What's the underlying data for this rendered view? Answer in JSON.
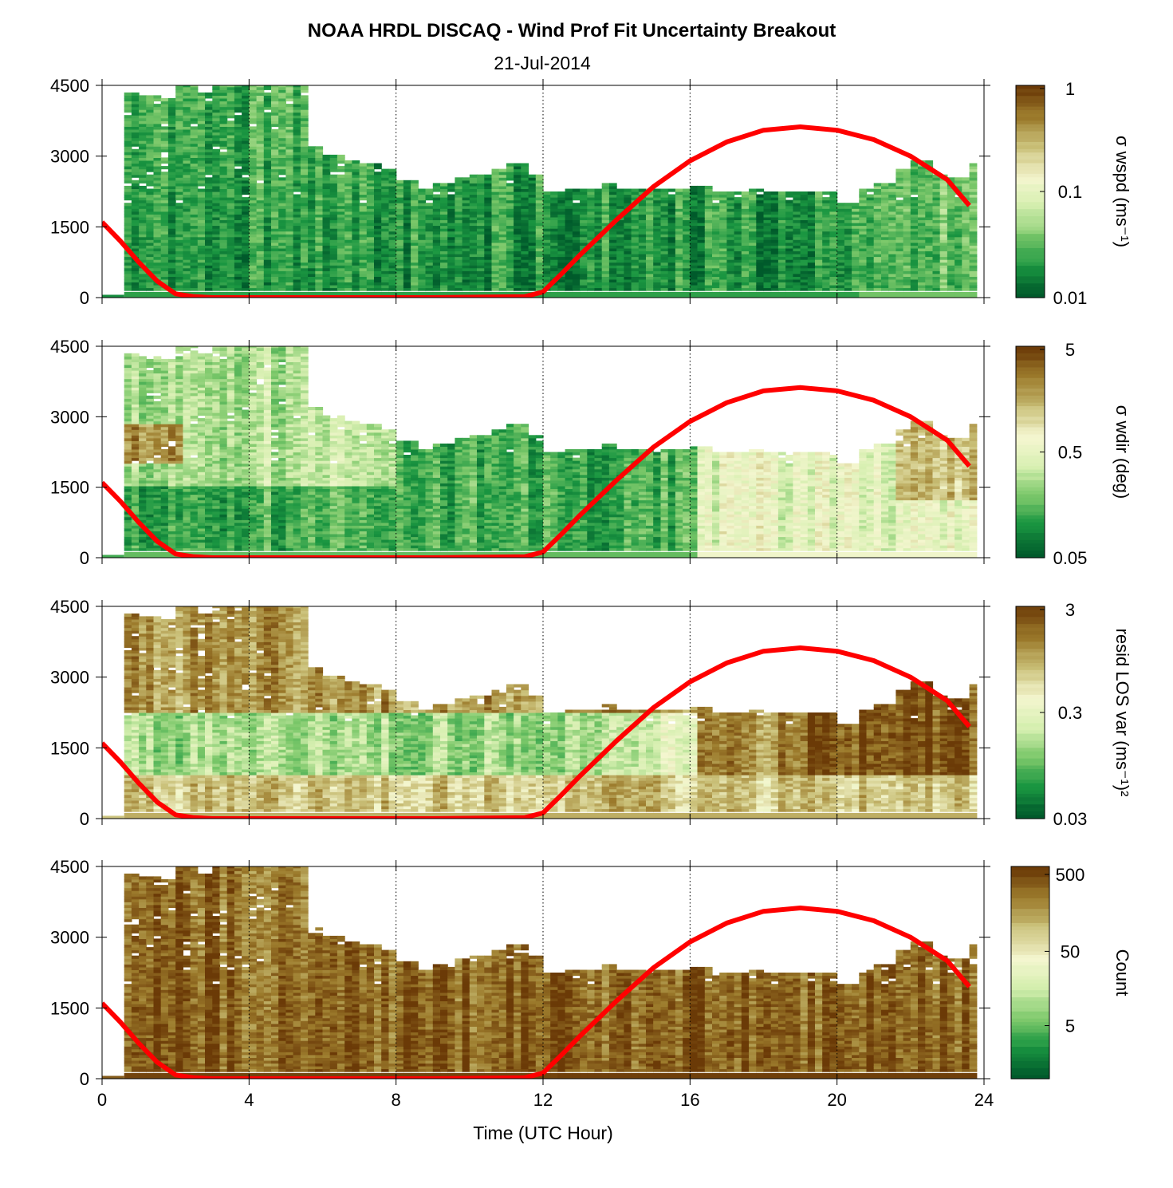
{
  "figure": {
    "title": "NOAA HRDL DISCAQ - Wind Prof Fit Uncertainty Breakout",
    "subtitle": "21-Jul-2014",
    "xlabel": "Time (UTC Hour)",
    "x_ticks": [
      "0",
      "4",
      "8",
      "12",
      "16",
      "20",
      "24"
    ],
    "y_ticks": [
      "0",
      "1500",
      "3000",
      "4500"
    ]
  },
  "colormap": {
    "low": "#006837",
    "mid": "#f7fbe0",
    "high": "#6b3a07",
    "stops": [
      "#005a2b",
      "#1a9641",
      "#7cc86a",
      "#d6efb0",
      "#f4f6cf",
      "#c9bf77",
      "#9c7b2c",
      "#6b3a07"
    ],
    "overlay_line": "#ff0000"
  },
  "chart_data": [
    {
      "type": "heatmap",
      "panel": "wspd",
      "colorbar_label": "σ wspd (ms⁻¹)",
      "colorbar_ticks": [
        "1",
        "0.1",
        "0.01"
      ],
      "color_scale": "log",
      "clim": [
        0.01,
        1
      ],
      "xlim": [
        0,
        24
      ],
      "ylim": [
        0,
        4500
      ],
      "grid": "vertical dotted at 4, 8, 12, 16, 20",
      "data_top_profile": {
        "x": [
          0.6,
          1.0,
          1.5,
          2.0,
          2.5,
          3.0,
          3.5,
          4.0,
          4.5,
          5.0,
          5.5,
          6.0,
          6.5,
          7.0,
          7.5,
          8.0,
          8.5,
          9.0,
          9.5,
          10.0,
          10.5,
          11.0,
          11.5,
          12.0,
          12.5,
          13.0,
          13.5,
          14.0,
          14.5,
          15.0,
          15.5,
          16.0,
          16.5,
          17.0,
          17.5,
          18.0,
          18.5,
          19.0,
          19.5,
          20.0,
          20.5,
          21.0,
          21.5,
          22.0,
          22.5,
          23.0,
          23.5
        ],
        "y": [
          4300,
          4250,
          4200,
          4500,
          4300,
          4500,
          4500,
          4500,
          4500,
          4500,
          3200,
          3000,
          2900,
          2800,
          2700,
          2450,
          2300,
          2400,
          2500,
          2600,
          2700,
          2800,
          2600,
          2200,
          2300,
          2300,
          2400,
          2300,
          2300,
          2300,
          2300,
          2350,
          2200,
          2200,
          2300,
          2200,
          2200,
          2200,
          2200,
          2000,
          2300,
          2400,
          2700,
          2900,
          2600,
          2500,
          2800
        ]
      },
      "overlay_curve": {
        "x": [
          0,
          0.5,
          1.0,
          1.5,
          2.0,
          2.5,
          3,
          6,
          9,
          11.5,
          12.0,
          12.5,
          13,
          14,
          15,
          16,
          17,
          18,
          19,
          20,
          21,
          22,
          23,
          23.6
        ],
        "y": [
          1600,
          1200,
          750,
          350,
          80,
          20,
          0,
          0,
          0,
          20,
          120,
          500,
          900,
          1650,
          2350,
          2900,
          3300,
          3550,
          3620,
          3550,
          3350,
          3000,
          2500,
          1950
        ]
      }
    },
    {
      "type": "heatmap",
      "panel": "wdir",
      "colorbar_label": "σ wdir (deg)",
      "colorbar_ticks": [
        "5",
        "0.5",
        "0.05"
      ],
      "color_scale": "log",
      "clim": [
        0.05,
        5
      ],
      "xlim": [
        0,
        24
      ],
      "ylim": [
        0,
        4500
      ],
      "grid": "vertical dotted at 4, 8, 12, 16, 20",
      "overlay_curve": {
        "x": [
          0,
          0.5,
          1.0,
          1.5,
          2.0,
          2.5,
          3,
          6,
          9,
          11.5,
          12.0,
          12.5,
          13,
          14,
          15,
          16,
          17,
          18,
          19,
          20,
          21,
          22,
          23,
          23.6
        ],
        "y": [
          1600,
          1200,
          750,
          350,
          80,
          20,
          0,
          0,
          0,
          20,
          120,
          500,
          900,
          1650,
          2350,
          2900,
          3300,
          3550,
          3620,
          3550,
          3350,
          3000,
          2500,
          1950
        ]
      }
    },
    {
      "type": "heatmap",
      "panel": "resid",
      "colorbar_label": "resid LOS var (ms⁻¹)²",
      "colorbar_ticks": [
        "3",
        "0.3",
        "0.03"
      ],
      "color_scale": "log",
      "clim": [
        0.03,
        3
      ],
      "xlim": [
        0,
        24
      ],
      "ylim": [
        0,
        4500
      ],
      "grid": "vertical dotted at 4, 8, 12, 16, 20",
      "overlay_curve": {
        "x": [
          0,
          0.5,
          1.0,
          1.5,
          2.0,
          2.5,
          3,
          6,
          9,
          11.5,
          12.0,
          12.5,
          13,
          14,
          15,
          16,
          17,
          18,
          19,
          20,
          21,
          22,
          23,
          23.6
        ],
        "y": [
          1600,
          1200,
          750,
          350,
          80,
          20,
          0,
          0,
          0,
          20,
          120,
          500,
          900,
          1650,
          2350,
          2900,
          3300,
          3550,
          3620,
          3550,
          3350,
          3000,
          2500,
          1950
        ]
      }
    },
    {
      "type": "heatmap",
      "panel": "count",
      "colorbar_label": "Count",
      "colorbar_ticks": [
        "500",
        "50",
        "5"
      ],
      "color_scale": "log",
      "clim": [
        1,
        500
      ],
      "xlim": [
        0,
        24
      ],
      "ylim": [
        0,
        4500
      ],
      "grid": "vertical dotted at 4, 8, 12, 16, 20",
      "overlay_curve": {
        "x": [
          0,
          0.5,
          1.0,
          1.5,
          2.0,
          2.5,
          3,
          6,
          9,
          11.5,
          12.0,
          12.5,
          13,
          14,
          15,
          16,
          17,
          18,
          19,
          20,
          21,
          22,
          23,
          23.6
        ],
        "y": [
          1600,
          1200,
          750,
          350,
          80,
          20,
          0,
          0,
          0,
          20,
          120,
          500,
          900,
          1650,
          2350,
          2900,
          3300,
          3550,
          3620,
          3550,
          3350,
          3000,
          2500,
          1950
        ]
      }
    }
  ]
}
